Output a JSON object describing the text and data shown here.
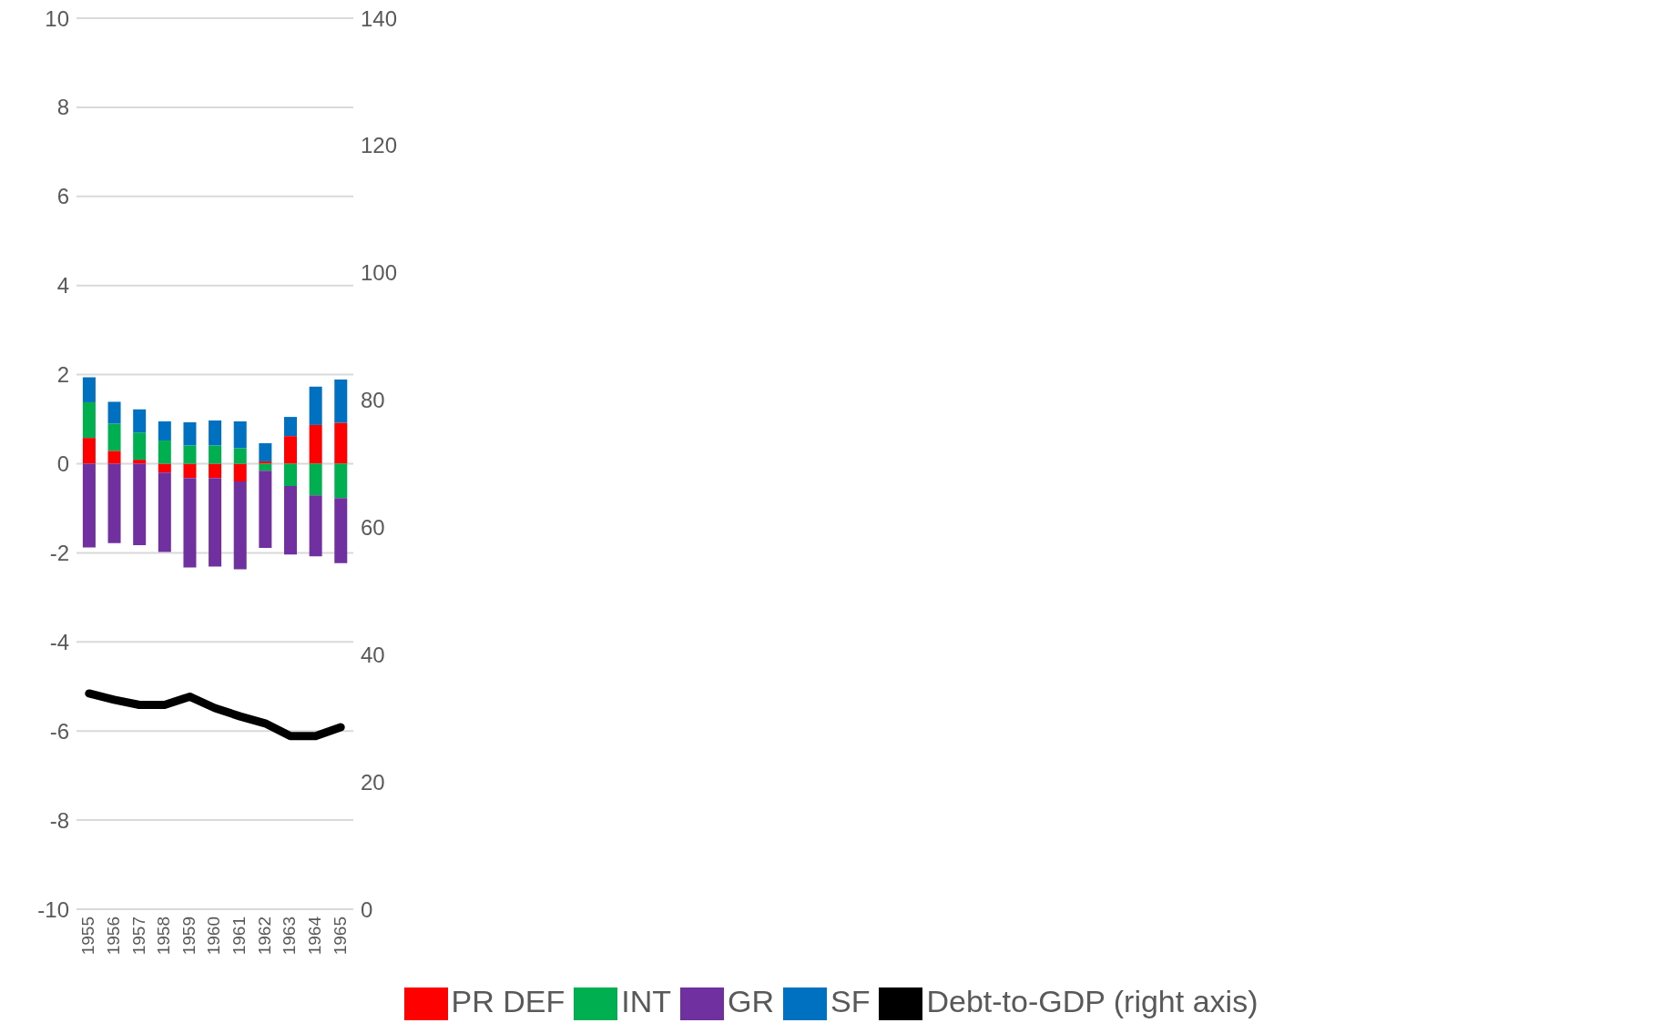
{
  "chart_data": {
    "type": "bar",
    "stacked": true,
    "categories": [
      "1955",
      "1956",
      "1957",
      "1958",
      "1959",
      "1960",
      "1961",
      "1962",
      "1963",
      "1964",
      "1965"
    ],
    "series": [
      {
        "name": "PR DEF",
        "color": "#ff0000",
        "values": [
          0.58,
          0.29,
          0.09,
          -0.2,
          -0.32,
          -0.32,
          -0.4,
          0.05,
          0.62,
          0.87,
          0.92
        ]
      },
      {
        "name": "INT",
        "color": "#00b050",
        "values": [
          0.8,
          0.61,
          0.61,
          0.52,
          0.41,
          0.41,
          0.35,
          -0.16,
          -0.5,
          -0.71,
          -0.77
        ]
      },
      {
        "name": "GR",
        "color": "#7030a0",
        "values": [
          -1.88,
          -1.78,
          -1.83,
          -1.78,
          -2.01,
          -1.99,
          -1.97,
          -1.73,
          -1.54,
          -1.37,
          -1.46
        ]
      },
      {
        "name": "SF",
        "color": "#0070c0",
        "values": [
          0.56,
          0.49,
          0.52,
          0.43,
          0.52,
          0.56,
          0.6,
          0.41,
          0.43,
          0.86,
          0.97
        ]
      },
      {
        "name": "Debt-to-GDP (right axis)",
        "type": "line",
        "axis": "y2",
        "color": "#000000",
        "values": [
          33.9,
          32.9,
          32.1,
          32.1,
          33.4,
          31.6,
          30.3,
          29.2,
          27.2,
          27.2,
          28.6
        ]
      }
    ],
    "ylim": [
      -10,
      10
    ],
    "yticks": [
      -10,
      -8,
      -6,
      -4,
      -2,
      0,
      2,
      4,
      6,
      8,
      10
    ],
    "y2lim": [
      0,
      140
    ],
    "y2ticks": [
      0,
      20,
      40,
      60,
      80,
      100,
      120,
      140
    ],
    "grid": "y",
    "legend": "bottom",
    "marker": "none",
    "line_style": "solid"
  }
}
